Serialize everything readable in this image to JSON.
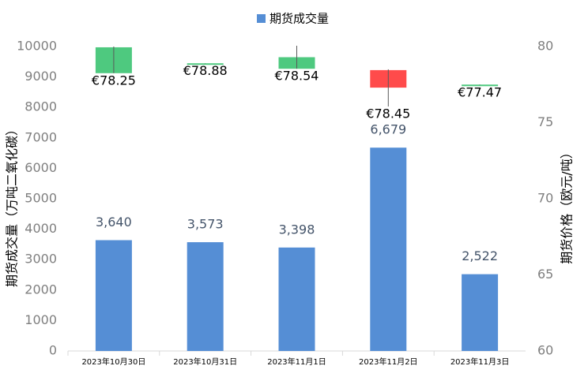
{
  "chart_data": {
    "type": "bar-candlestick",
    "categories": [
      "2023年10月30日",
      "2023年10月31日",
      "2023年11月1日",
      "2023年11月2日",
      "2023年11月3日"
    ],
    "y_label": "期货成交量（万吨二氧化碳）",
    "y2_label": "期货价格（欧元/吨）",
    "ylim": [
      0,
      10000
    ],
    "yticks": [
      0,
      1000,
      2000,
      3000,
      4000,
      5000,
      6000,
      7000,
      8000,
      9000,
      10000
    ],
    "y2lim": [
      60,
      80
    ],
    "y2ticks": [
      60,
      65,
      70,
      75,
      80
    ],
    "legend": "top",
    "series": [
      {
        "type": "bar",
        "name": "期货成交量",
        "color": "#558ed5",
        "values": [
          3640,
          3573,
          3398,
          6679,
          2522
        ],
        "value_labels": [
          "3,640",
          "3,573",
          "3,398",
          "6,679",
          "2,522"
        ]
      },
      {
        "type": "candlestick",
        "axis": "y2",
        "up_color": "#ff4b4b",
        "down_color": "#4ec97f",
        "open": [
          79.95,
          78.9,
          79.3,
          77.3,
          77.5
        ],
        "high": [
          80,
          78.9,
          80.05,
          78.5,
          77.5
        ],
        "low": [
          78.25,
          78.88,
          78.54,
          76.06,
          77.47
        ],
        "close": [
          78.25,
          78.88,
          78.54,
          78.45,
          77.47
        ],
        "value_labels": [
          "€78.25",
          "€78.88",
          "€78.54",
          "€78.45",
          "€77.47"
        ]
      }
    ]
  }
}
